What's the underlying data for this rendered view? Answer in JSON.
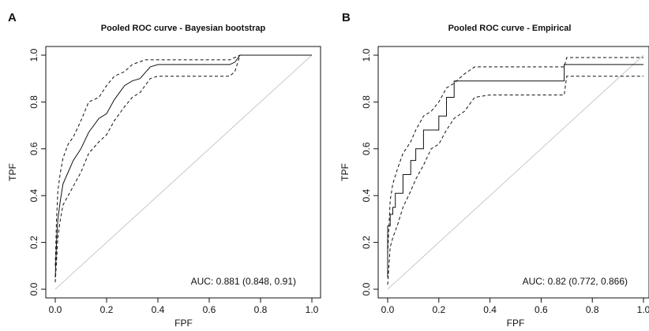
{
  "chart_data": [
    {
      "type": "line",
      "panel_label": "A",
      "title": "Pooled ROC curve - Bayesian bootstrap",
      "xlabel": "FPF",
      "ylabel": "TPF",
      "xlim": [
        0,
        1
      ],
      "ylim": [
        0,
        1
      ],
      "xticks": [
        "0.0",
        "0.2",
        "0.4",
        "0.6",
        "0.8",
        "1.0"
      ],
      "yticks": [
        "0.0",
        "0.2",
        "0.4",
        "0.6",
        "0.8",
        "1.0"
      ],
      "grid": false,
      "annotation": "AUC: 0.881 (0.848, 0.91)",
      "reference_line": {
        "x": [
          0,
          1
        ],
        "y": [
          0,
          1
        ]
      },
      "series": [
        {
          "style": "solid",
          "x": [
            0.0,
            0.005,
            0.01,
            0.02,
            0.03,
            0.05,
            0.07,
            0.1,
            0.13,
            0.17,
            0.2,
            0.23,
            0.27,
            0.3,
            0.33,
            0.37,
            0.4,
            0.5,
            0.6,
            0.68,
            0.7,
            0.72,
            1.0
          ],
          "y": [
            0.05,
            0.2,
            0.3,
            0.38,
            0.45,
            0.5,
            0.55,
            0.6,
            0.67,
            0.73,
            0.75,
            0.81,
            0.87,
            0.89,
            0.9,
            0.95,
            0.96,
            0.96,
            0.96,
            0.96,
            0.97,
            1.0,
            1.0
          ]
        },
        {
          "style": "dashed",
          "x": [
            0.0,
            0.005,
            0.01,
            0.02,
            0.03,
            0.05,
            0.07,
            0.1,
            0.13,
            0.17,
            0.2,
            0.23,
            0.27,
            0.3,
            0.35,
            0.4,
            0.6,
            0.68,
            0.7,
            0.72,
            1.0
          ],
          "y": [
            0.1,
            0.3,
            0.42,
            0.5,
            0.56,
            0.62,
            0.65,
            0.72,
            0.8,
            0.82,
            0.87,
            0.91,
            0.93,
            0.96,
            0.98,
            0.98,
            0.98,
            0.98,
            0.99,
            1.0,
            1.0
          ]
        },
        {
          "style": "dashed",
          "x": [
            0.0,
            0.005,
            0.01,
            0.02,
            0.03,
            0.05,
            0.07,
            0.1,
            0.13,
            0.17,
            0.2,
            0.23,
            0.27,
            0.3,
            0.33,
            0.37,
            0.4,
            0.6,
            0.68,
            0.7,
            0.72,
            1.0
          ],
          "y": [
            0.03,
            0.12,
            0.22,
            0.3,
            0.36,
            0.4,
            0.44,
            0.5,
            0.58,
            0.63,
            0.66,
            0.72,
            0.78,
            0.82,
            0.84,
            0.9,
            0.91,
            0.91,
            0.91,
            0.93,
            1.0,
            1.0
          ]
        }
      ]
    },
    {
      "type": "line",
      "panel_label": "B",
      "title": "Pooled ROC curve - Empirical",
      "xlabel": "FPF",
      "ylabel": "TPF",
      "xlim": [
        0,
        1
      ],
      "ylim": [
        0,
        1
      ],
      "xticks": [
        "0.0",
        "0.2",
        "0.4",
        "0.6",
        "0.8",
        "1.0"
      ],
      "yticks": [
        "0.0",
        "0.2",
        "0.4",
        "0.6",
        "0.8",
        "1.0"
      ],
      "grid": false,
      "annotation": "AUC: 0.82 (0.772, 0.866)",
      "reference_line": {
        "x": [
          0,
          1
        ],
        "y": [
          0,
          1
        ]
      },
      "series": [
        {
          "style": "solid",
          "x": [
            0.0,
            0.0,
            0.01,
            0.01,
            0.02,
            0.02,
            0.03,
            0.03,
            0.06,
            0.06,
            0.09,
            0.09,
            0.11,
            0.11,
            0.14,
            0.14,
            0.2,
            0.2,
            0.23,
            0.23,
            0.26,
            0.26,
            0.34,
            0.34,
            0.69,
            0.69,
            1.0
          ],
          "y": [
            0.05,
            0.27,
            0.27,
            0.32,
            0.32,
            0.35,
            0.35,
            0.41,
            0.41,
            0.49,
            0.49,
            0.55,
            0.55,
            0.6,
            0.6,
            0.68,
            0.68,
            0.74,
            0.74,
            0.82,
            0.82,
            0.89,
            0.89,
            0.89,
            0.89,
            0.96,
            0.96
          ]
        },
        {
          "style": "dashed",
          "x": [
            0.0,
            0.01,
            0.02,
            0.04,
            0.06,
            0.09,
            0.11,
            0.14,
            0.17,
            0.2,
            0.23,
            0.26,
            0.3,
            0.34,
            0.4,
            0.6,
            0.69,
            0.7,
            1.0
          ],
          "y": [
            0.15,
            0.38,
            0.45,
            0.52,
            0.58,
            0.63,
            0.68,
            0.74,
            0.76,
            0.8,
            0.86,
            0.88,
            0.92,
            0.95,
            0.95,
            0.95,
            0.95,
            0.99,
            0.99
          ]
        },
        {
          "style": "dashed",
          "x": [
            0.0,
            0.01,
            0.02,
            0.04,
            0.06,
            0.09,
            0.11,
            0.14,
            0.17,
            0.2,
            0.23,
            0.26,
            0.3,
            0.34,
            0.4,
            0.6,
            0.69,
            0.7,
            1.0
          ],
          "y": [
            0.02,
            0.18,
            0.22,
            0.28,
            0.35,
            0.42,
            0.47,
            0.53,
            0.6,
            0.62,
            0.68,
            0.73,
            0.76,
            0.82,
            0.83,
            0.83,
            0.83,
            0.91,
            0.91
          ]
        }
      ]
    }
  ]
}
